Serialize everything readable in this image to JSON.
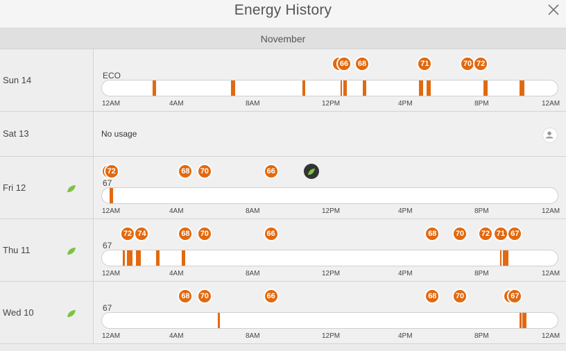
{
  "header": {
    "title": "Energy History"
  },
  "month": "November",
  "tick_labels": [
    "12AM",
    "4AM",
    "8AM",
    "12PM",
    "4PM",
    "8PM",
    "12AM"
  ],
  "colors": {
    "heat": "#e2690f",
    "leaf": "#7dc242",
    "eco_bubble": "#333333"
  },
  "icons": {
    "close": "close-icon",
    "leaf": "leaf-icon",
    "person": "person-icon"
  },
  "days": [
    {
      "label": "Sun 14",
      "leaf": false,
      "start_temp": "ECO",
      "no_usage": false,
      "hours": [
        [
          2.65,
          2.85
        ],
        [
          6.8,
          7.0
        ],
        [
          10.55,
          10.7
        ],
        [
          12.55,
          12.6
        ],
        [
          12.7,
          12.9
        ],
        [
          13.75,
          13.9
        ],
        [
          16.7,
          16.9
        ],
        [
          17.1,
          17.3
        ],
        [
          20.1,
          20.3
        ],
        [
          22.0,
          22.25
        ]
      ],
      "setpoints": [
        {
          "label": "",
          "hour": 12.5
        },
        {
          "label": "66",
          "hour": 12.75
        },
        {
          "label": "68",
          "hour": 13.7
        },
        {
          "label": "71",
          "hour": 17.0
        },
        {
          "label": "70",
          "hour": 19.25
        },
        {
          "label": "72",
          "hour": 19.95
        }
      ]
    },
    {
      "label": "Sat 13",
      "leaf": false,
      "no_usage": true,
      "no_usage_text": "No usage"
    },
    {
      "label": "Fri 12",
      "leaf": true,
      "start_temp": "67",
      "no_usage": false,
      "eco_hour": 11.05,
      "hours": [
        [
          0.4,
          0.6
        ]
      ],
      "setpoints": [
        {
          "label": "",
          "hour": 0.35
        },
        {
          "label": "72",
          "hour": 0.5
        },
        {
          "label": "68",
          "hour": 4.4
        },
        {
          "label": "70",
          "hour": 5.4
        },
        {
          "label": "66",
          "hour": 8.9
        }
      ]
    },
    {
      "label": "Thu 11",
      "leaf": true,
      "start_temp": "67",
      "no_usage": false,
      "hours": [
        [
          1.1,
          1.2
        ],
        [
          1.3,
          1.6
        ],
        [
          1.8,
          2.05
        ],
        [
          2.85,
          3.05
        ],
        [
          4.2,
          4.4
        ],
        [
          20.95,
          21.05
        ],
        [
          21.1,
          21.4
        ]
      ],
      "setpoints": [
        {
          "label": "72",
          "hour": 1.35
        },
        {
          "label": "74",
          "hour": 2.1
        },
        {
          "label": "68",
          "hour": 4.4
        },
        {
          "label": "70",
          "hour": 5.4
        },
        {
          "label": "66",
          "hour": 8.9
        },
        {
          "label": "68",
          "hour": 17.4
        },
        {
          "label": "70",
          "hour": 18.85
        },
        {
          "label": "72",
          "hour": 20.2
        },
        {
          "label": "71",
          "hour": 21.0
        },
        {
          "label": "67",
          "hour": 21.75
        }
      ]
    },
    {
      "label": "Wed 10",
      "leaf": true,
      "start_temp": "67",
      "no_usage": false,
      "hours": [
        [
          6.1,
          6.2
        ],
        [
          22.0,
          22.1
        ],
        [
          22.15,
          22.35
        ]
      ],
      "setpoints": [
        {
          "label": "68",
          "hour": 4.4
        },
        {
          "label": "70",
          "hour": 5.4
        },
        {
          "label": "66",
          "hour": 8.9
        },
        {
          "label": "68",
          "hour": 17.4
        },
        {
          "label": "70",
          "hour": 18.85
        },
        {
          "label": "",
          "hour": 21.5
        },
        {
          "label": "67",
          "hour": 21.75
        }
      ]
    }
  ]
}
